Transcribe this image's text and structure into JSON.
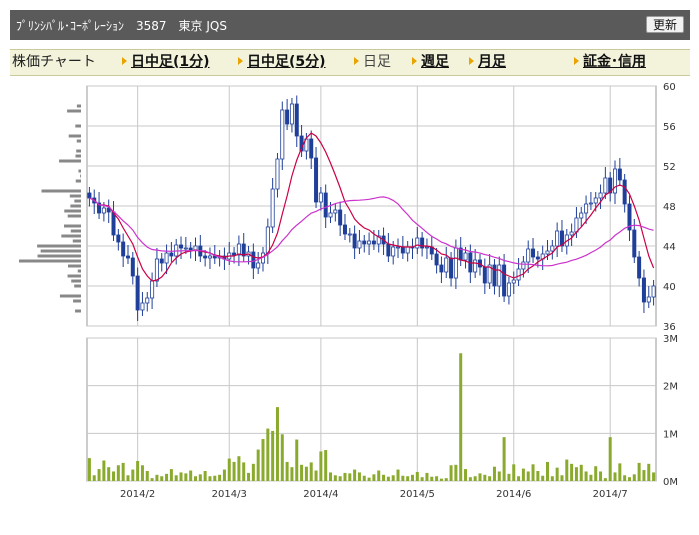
{
  "header": {
    "title": "ﾌﾟﾘﾝｼﾊﾟﾙ･ｺｰﾎﾟﾚｰｼｮﾝ　3587　東京 JQS",
    "refresh_label": "更新"
  },
  "nav": {
    "label": "株価チャート",
    "items": [
      {
        "label": "日中足(1分)",
        "active": true
      },
      {
        "label": "日中足(5分)",
        "active": true
      },
      {
        "label": "日足",
        "active": false
      },
      {
        "label": "週足",
        "active": true
      },
      {
        "label": "月足",
        "active": true
      },
      {
        "label": "証金･信用",
        "active": true
      }
    ]
  },
  "colors": {
    "candle_up": "#ffffff",
    "candle_down": "#1f3f99",
    "ma_short": "#cc0044",
    "ma_long": "#cc33cc",
    "volume": "#8aaa2e",
    "price_profile": "#888888",
    "grid": "#c8c8c8"
  },
  "chart_data": [
    {
      "type": "candlestick",
      "ylim": [
        36,
        60
      ],
      "yticks": [
        36,
        40,
        44,
        48,
        52,
        56,
        60
      ],
      "xticks": [
        "2014/2",
        "2014/3",
        "2014/4",
        "2014/5",
        "2014/6",
        "2014/7"
      ],
      "xtick_index": [
        10,
        29,
        48,
        68,
        88,
        108
      ],
      "days": 118,
      "closes": [
        48.8,
        48.3,
        47.3,
        47.8,
        47.4,
        45.1,
        44.4,
        43.0,
        42.8,
        41.0,
        37.6,
        38.3,
        38.8,
        40.5,
        42.7,
        42.3,
        43.3,
        43.0,
        44.1,
        43.8,
        43.8,
        43.6,
        44.0,
        43.0,
        42.8,
        43.0,
        42.8,
        43.0,
        42.7,
        43.3,
        43.1,
        44.2,
        43.0,
        43.4,
        41.8,
        42.3,
        43.3,
        45.9,
        49.7,
        52.7,
        57.6,
        56.2,
        58.2,
        55.0,
        53.5,
        54.7,
        52.8,
        48.4,
        49.3,
        46.9,
        47.3,
        47.6,
        46.1,
        45.2,
        45.2,
        43.8,
        44.5,
        44.2,
        44.5,
        44.2,
        45.0,
        44.2,
        43.0,
        43.9,
        43.9,
        43.3,
        43.9,
        43.8,
        44.8,
        43.8,
        43.9,
        43.2,
        42.1,
        41.4,
        42.8,
        40.8,
        43.8,
        42.6,
        43.3,
        41.4,
        42.6,
        41.9,
        40.3,
        42.1,
        40.0,
        42.1,
        39.0,
        40.3,
        40.6,
        41.7,
        42.4,
        43.7,
        42.9,
        42.7,
        43.2,
        43.5,
        44.0,
        45.5,
        44.0,
        45.1,
        45.4,
        46.8,
        47.3,
        48.2,
        48.3,
        48.8,
        49.3,
        50.8,
        49.3,
        51.7,
        50.6,
        48.2,
        45.6,
        42.9,
        40.8,
        38.4,
        38.9,
        40.0
      ],
      "ma_short": [
        48.8,
        48.6,
        48.1,
        48.1,
        48.0,
        47.3,
        46.7,
        45.8,
        45.0,
        44.2,
        42.9,
        41.7,
        41.0,
        40.5,
        40.6,
        40.9,
        41.5,
        42.3,
        42.8,
        43.2,
        43.4,
        43.5,
        43.6,
        43.5,
        43.4,
        43.3,
        43.1,
        43.0,
        42.9,
        43.0,
        43.0,
        43.2,
        43.1,
        43.2,
        42.9,
        42.8,
        42.9,
        43.3,
        44.1,
        45.3,
        47.2,
        49.0,
        51.0,
        52.6,
        53.8,
        54.8,
        55.3,
        55.0,
        54.3,
        53.4,
        52.3,
        51.1,
        49.8,
        48.4,
        47.6,
        46.7,
        46.2,
        45.8,
        45.6,
        45.2,
        44.9,
        44.6,
        44.2,
        44.1,
        44.0,
        43.9,
        43.9,
        43.9,
        44.1,
        44.0,
        44.0,
        43.9,
        43.6,
        43.2,
        43.1,
        42.7,
        42.8,
        42.6,
        42.5,
        42.3,
        42.3,
        42.2,
        41.9,
        41.9,
        41.6,
        41.6,
        41.2,
        41.0,
        40.8,
        41.0,
        41.2,
        41.7,
        42.0,
        42.4,
        42.7,
        43.0,
        43.3,
        43.9,
        44.1,
        44.5,
        44.8,
        45.4,
        45.9,
        46.5,
        47.1,
        47.8,
        48.4,
        49.1,
        49.4,
        49.9,
        50.1,
        49.9,
        49.2,
        48.0,
        46.6,
        44.8,
        43.0,
        41.8
      ]
    },
    {
      "type": "bar",
      "name": "volume",
      "ylim": [
        0,
        3000000
      ],
      "yticks": [
        0,
        1000000,
        2000000,
        3000000
      ],
      "ytick_labels": [
        "0M",
        "1M",
        "2M",
        "3M"
      ],
      "values": [
        480000,
        120000,
        250000,
        430000,
        290000,
        200000,
        330000,
        380000,
        120000,
        240000,
        420000,
        330000,
        210000,
        60000,
        130000,
        100000,
        150000,
        250000,
        120000,
        180000,
        160000,
        220000,
        100000,
        140000,
        210000,
        100000,
        110000,
        130000,
        240000,
        470000,
        400000,
        520000,
        390000,
        170000,
        360000,
        660000,
        880000,
        1100000,
        1050000,
        1550000,
        980000,
        400000,
        290000,
        870000,
        340000,
        300000,
        390000,
        220000,
        620000,
        650000,
        180000,
        120000,
        100000,
        170000,
        160000,
        240000,
        180000,
        110000,
        70000,
        140000,
        220000,
        130000,
        90000,
        120000,
        240000,
        110000,
        100000,
        130000,
        190000,
        80000,
        170000,
        90000,
        100000,
        50000,
        60000,
        330000,
        340000,
        2680000,
        250000,
        80000,
        100000,
        160000,
        130000,
        100000,
        300000,
        200000,
        920000,
        150000,
        350000,
        100000,
        260000,
        200000,
        350000,
        210000,
        110000,
        400000,
        100000,
        280000,
        120000,
        450000,
        360000,
        290000,
        340000,
        200000,
        130000,
        310000,
        200000,
        60000,
        920000,
        180000,
        370000,
        120000,
        80000,
        140000,
        380000,
        230000,
        360000,
        180000
      ]
    }
  ]
}
